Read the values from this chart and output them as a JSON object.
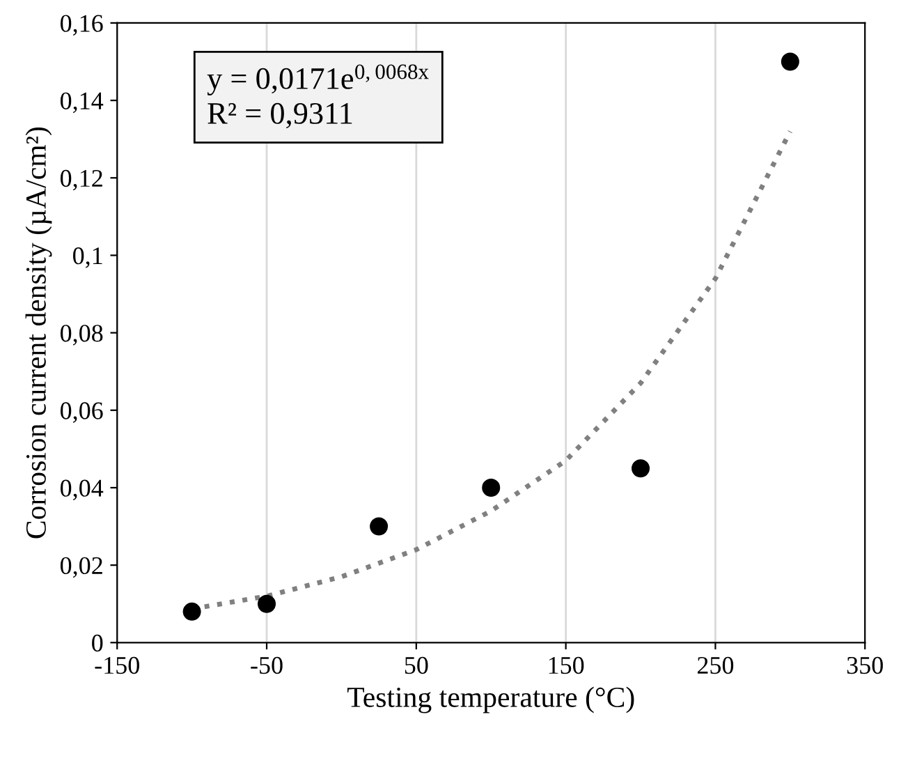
{
  "chart_data": {
    "type": "scatter",
    "xlabel": "Testing temperature (°C)",
    "ylabel": "Corrosion current density (µA/cm²)",
    "annotations": [
      "y = 0,0171e$^{0,0068x}$",
      "R² = 0,9311"
    ],
    "series": [
      {
        "color": "#000000",
        "marker": "circle",
        "x": [
          -100,
          -50,
          25,
          100,
          200,
          300
        ],
        "values": [
          0.008,
          0.01,
          0.03,
          0.04,
          0.045,
          0.15
        ]
      },
      {
        "type": "line",
        "color": "#808080",
        "line_style": "dotted",
        "x": [
          -100,
          -50,
          0,
          50,
          100,
          150,
          200,
          250,
          300
        ],
        "values": [
          0.0087,
          0.012,
          0.017,
          0.024,
          0.034,
          0.047,
          0.067,
          0.094,
          0.132
        ]
      }
    ],
    "xlim": [
      -150,
      350
    ],
    "xticks": [
      -150,
      -50,
      50,
      150,
      250,
      350
    ],
    "ylim": [
      0,
      0.16
    ],
    "yticks": [
      {
        "value": 0,
        "label": "0"
      },
      {
        "value": 0.02,
        "label": "0,02"
      },
      {
        "value": 0.04,
        "label": "0,04"
      },
      {
        "value": 0.06,
        "label": "0,06"
      },
      {
        "value": 0.08,
        "label": "0,08"
      },
      {
        "value": 0.1,
        "label": "0,1"
      },
      {
        "value": 0.12,
        "label": "0,12"
      },
      {
        "value": 0.14,
        "label": "0,14"
      },
      {
        "value": 0.16,
        "label": "0,16"
      }
    ],
    "grid": "x"
  }
}
